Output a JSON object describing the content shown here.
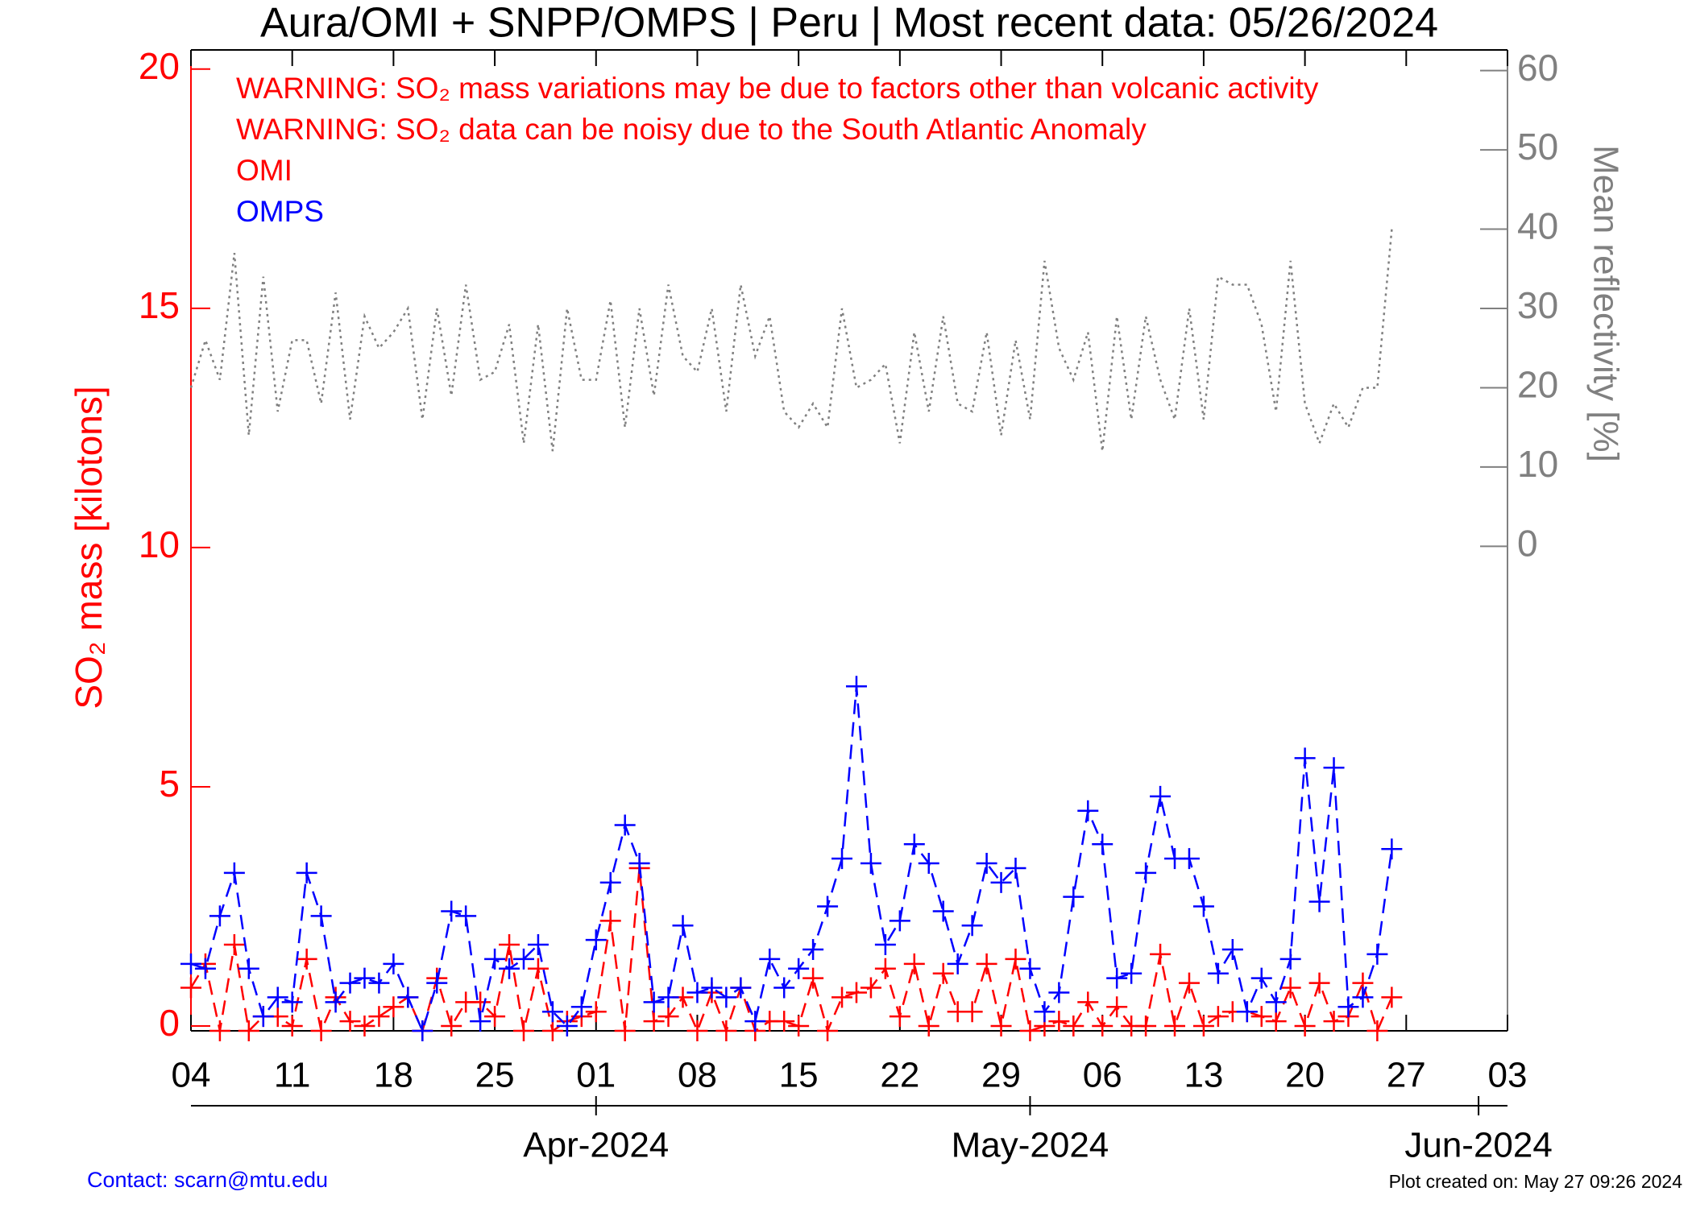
{
  "chart_data": {
    "type": "line",
    "title": "Aura/OMI + SNPP/OMPS | Peru | Most recent data: 05/26/2024",
    "annotations": [
      "WARNING: SO₂ mass variations may be due to factors other than volcanic activity",
      "WARNING: SO₂ data can be noisy due to the South Atlantic Anomaly"
    ],
    "y_label": "SO₂ mass [kilotons]",
    "y2_label": "Mean reflectivity [%]",
    "contact": "Contact: scarn@mtu.edu",
    "created": "Plot created on: May 27 09:26 2024",
    "x": [
      "2024-03-04",
      "2024-03-05",
      "2024-03-06",
      "2024-03-07",
      "2024-03-08",
      "2024-03-09",
      "2024-03-10",
      "2024-03-11",
      "2024-03-12",
      "2024-03-13",
      "2024-03-14",
      "2024-03-15",
      "2024-03-16",
      "2024-03-17",
      "2024-03-18",
      "2024-03-19",
      "2024-03-20",
      "2024-03-21",
      "2024-03-22",
      "2024-03-23",
      "2024-03-24",
      "2024-03-25",
      "2024-03-26",
      "2024-03-27",
      "2024-03-28",
      "2024-03-29",
      "2024-03-30",
      "2024-03-31",
      "2024-04-01",
      "2024-04-02",
      "2024-04-03",
      "2024-04-04",
      "2024-04-05",
      "2024-04-06",
      "2024-04-07",
      "2024-04-08",
      "2024-04-09",
      "2024-04-10",
      "2024-04-11",
      "2024-04-12",
      "2024-04-13",
      "2024-04-14",
      "2024-04-15",
      "2024-04-16",
      "2024-04-17",
      "2024-04-18",
      "2024-04-19",
      "2024-04-20",
      "2024-04-21",
      "2024-04-22",
      "2024-04-23",
      "2024-04-24",
      "2024-04-25",
      "2024-04-26",
      "2024-04-27",
      "2024-04-28",
      "2024-04-29",
      "2024-04-30",
      "2024-05-01",
      "2024-05-02",
      "2024-05-03",
      "2024-05-04",
      "2024-05-05",
      "2024-05-06",
      "2024-05-07",
      "2024-05-08",
      "2024-05-09",
      "2024-05-10",
      "2024-05-11",
      "2024-05-12",
      "2024-05-13",
      "2024-05-14",
      "2024-05-15",
      "2024-05-16",
      "2024-05-17",
      "2024-05-18",
      "2024-05-19",
      "2024-05-20",
      "2024-05-21",
      "2024-05-22",
      "2024-05-23",
      "2024-05-24",
      "2024-05-25",
      "2024-05-26"
    ],
    "series": [
      {
        "name": "OMI",
        "color": "#ff0000",
        "values": [
          0.8,
          1.3,
          -0.1,
          1.7,
          -0.1,
          0.2,
          0.2,
          0,
          1.4,
          -0.1,
          0.6,
          0.1,
          0,
          0.2,
          0.4,
          0.6,
          -0.1,
          1.0,
          0,
          0.5,
          0.5,
          0.2,
          1.7,
          -0.1,
          1.2,
          -0.1,
          0.1,
          0.2,
          0.3,
          2.2,
          -0.1,
          3.3,
          0.1,
          0.2,
          0.6,
          -0.1,
          0.7,
          -0.1,
          0.8,
          -0.1,
          0.1,
          0.1,
          0,
          1.0,
          -0.1,
          0.6,
          0.7,
          0.8,
          1.2,
          0.2,
          1.3,
          0,
          1.1,
          0.3,
          0.3,
          1.3,
          0,
          1.4,
          -0.1,
          0,
          0.1,
          0,
          0.5,
          0,
          0.4,
          0,
          0,
          1.5,
          0,
          0.9,
          0,
          0.2,
          0.3,
          0.3,
          0.2,
          0.1,
          0.8,
          0,
          0.9,
          0.1,
          0.2,
          0.9,
          -0.1,
          0.6
        ]
      },
      {
        "name": "OMPS",
        "color": "#0000ff",
        "values": [
          1.3,
          1.2,
          2.3,
          3.2,
          1.2,
          0.2,
          0.6,
          0.5,
          3.2,
          2.3,
          0.5,
          0.9,
          1.0,
          0.9,
          1.3,
          0.6,
          -0.1,
          0.9,
          2.4,
          2.3,
          0.1,
          1.4,
          1.2,
          1.4,
          1.7,
          0.3,
          0,
          0.4,
          1.8,
          3.0,
          4.2,
          3.4,
          0.5,
          0.6,
          2.1,
          0.7,
          0.8,
          0.6,
          0.8,
          0.1,
          1.4,
          0.8,
          1.2,
          1.6,
          2.5,
          3.5,
          7.1,
          3.4,
          1.7,
          2.2,
          3.8,
          3.4,
          2.4,
          1.3,
          2.1,
          3.4,
          3.0,
          3.3,
          1.2,
          0.3,
          0.7,
          2.7,
          4.5,
          3.8,
          1.0,
          1.1,
          3.2,
          4.8,
          3.5,
          3.5,
          2.5,
          1.1,
          1.6,
          0.3,
          1.0,
          0.5,
          1.4,
          5.6,
          2.6,
          5.4,
          0.4,
          0.6,
          1.5,
          3.7
        ]
      },
      {
        "axis": "y2",
        "color": "#808080",
        "values": [
          20,
          26,
          21,
          37,
          14,
          34,
          17,
          26,
          26,
          18,
          32,
          16,
          29,
          25,
          27,
          30,
          16,
          30,
          19,
          33,
          21,
          22,
          28,
          13,
          28,
          12,
          30,
          21,
          21,
          31,
          15,
          30,
          19,
          33,
          24,
          22,
          30,
          17,
          33,
          24,
          29,
          17,
          15,
          18,
          15,
          30,
          20,
          21,
          23,
          13,
          27,
          17,
          29,
          18,
          17,
          27,
          14,
          26,
          16,
          36,
          25,
          21,
          27,
          12,
          29,
          16,
          29,
          21,
          16,
          30,
          16,
          34,
          33,
          33,
          28,
          17,
          36,
          18,
          13,
          18,
          15,
          20,
          20,
          40
        ]
      }
    ],
    "xlim": [
      "2024-03-04",
      "2024-06-03"
    ],
    "xticks": [
      {
        "value": "2024-03-04",
        "label": "04"
      },
      {
        "value": "2024-03-11",
        "label": "11"
      },
      {
        "value": "2024-03-18",
        "label": "18"
      },
      {
        "value": "2024-03-25",
        "label": "25"
      },
      {
        "value": "2024-04-01",
        "label": "01"
      },
      {
        "value": "2024-04-08",
        "label": "08"
      },
      {
        "value": "2024-04-15",
        "label": "15"
      },
      {
        "value": "2024-04-22",
        "label": "22"
      },
      {
        "value": "2024-04-29",
        "label": "29"
      },
      {
        "value": "2024-05-06",
        "label": "06"
      },
      {
        "value": "2024-05-13",
        "label": "13"
      },
      {
        "value": "2024-05-20",
        "label": "20"
      },
      {
        "value": "2024-05-27",
        "label": "27"
      },
      {
        "value": "2024-06-03",
        "label": "03"
      }
    ],
    "month_ticks": [
      {
        "value": "2024-04-01",
        "label": "Apr-2024"
      },
      {
        "value": "2024-05-01",
        "label": "May-2024"
      },
      {
        "value": "2024-06-01",
        "label": "Jun-2024"
      }
    ],
    "ylim": [
      -0.1,
      20.4
    ],
    "yticks": [
      0,
      5,
      10,
      15,
      20
    ],
    "y2lim": [
      -61.1,
      62.6
    ],
    "y2ticks": [
      0,
      10,
      20,
      30,
      40,
      50,
      60
    ]
  }
}
